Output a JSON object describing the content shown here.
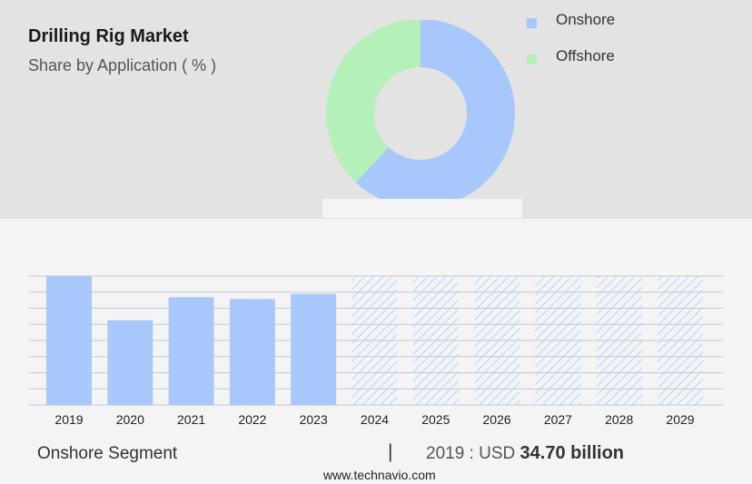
{
  "header": {
    "title": "Drilling Rig Market",
    "subtitle": "Share by Application ( % )"
  },
  "colors": {
    "onshore": "#a8c8fb",
    "offshore": "#b5efb9",
    "grid": "#c8c8c8",
    "top_panel": "#e3e3e3",
    "background": "#f4f4f6"
  },
  "chart_data": [
    {
      "type": "pie",
      "variant": "donut",
      "series": [
        {
          "name": "Onshore",
          "value": 62,
          "color": "#a8c8fb"
        },
        {
          "name": "Offshore",
          "value": 38,
          "color": "#b5efb9"
        }
      ],
      "legend_position": "right"
    },
    {
      "type": "bar",
      "categories": [
        "2019",
        "2020",
        "2021",
        "2022",
        "2023",
        "2024",
        "2025",
        "2026",
        "2027",
        "2028",
        "2029"
      ],
      "values": [
        34.7,
        22.8,
        29.0,
        28.5,
        29.9,
        34.7,
        34.7,
        34.7,
        34.7,
        34.7,
        34.7
      ],
      "forecast": [
        false,
        false,
        false,
        false,
        false,
        true,
        true,
        true,
        true,
        true,
        true
      ],
      "ylim": [
        0,
        34.7
      ],
      "grid": true
    }
  ],
  "footer": {
    "segment": "Onshore Segment",
    "divider": "|",
    "value_prefix": "2019 : USD",
    "value": "34.70 billion",
    "source": "www.technavio.com"
  }
}
